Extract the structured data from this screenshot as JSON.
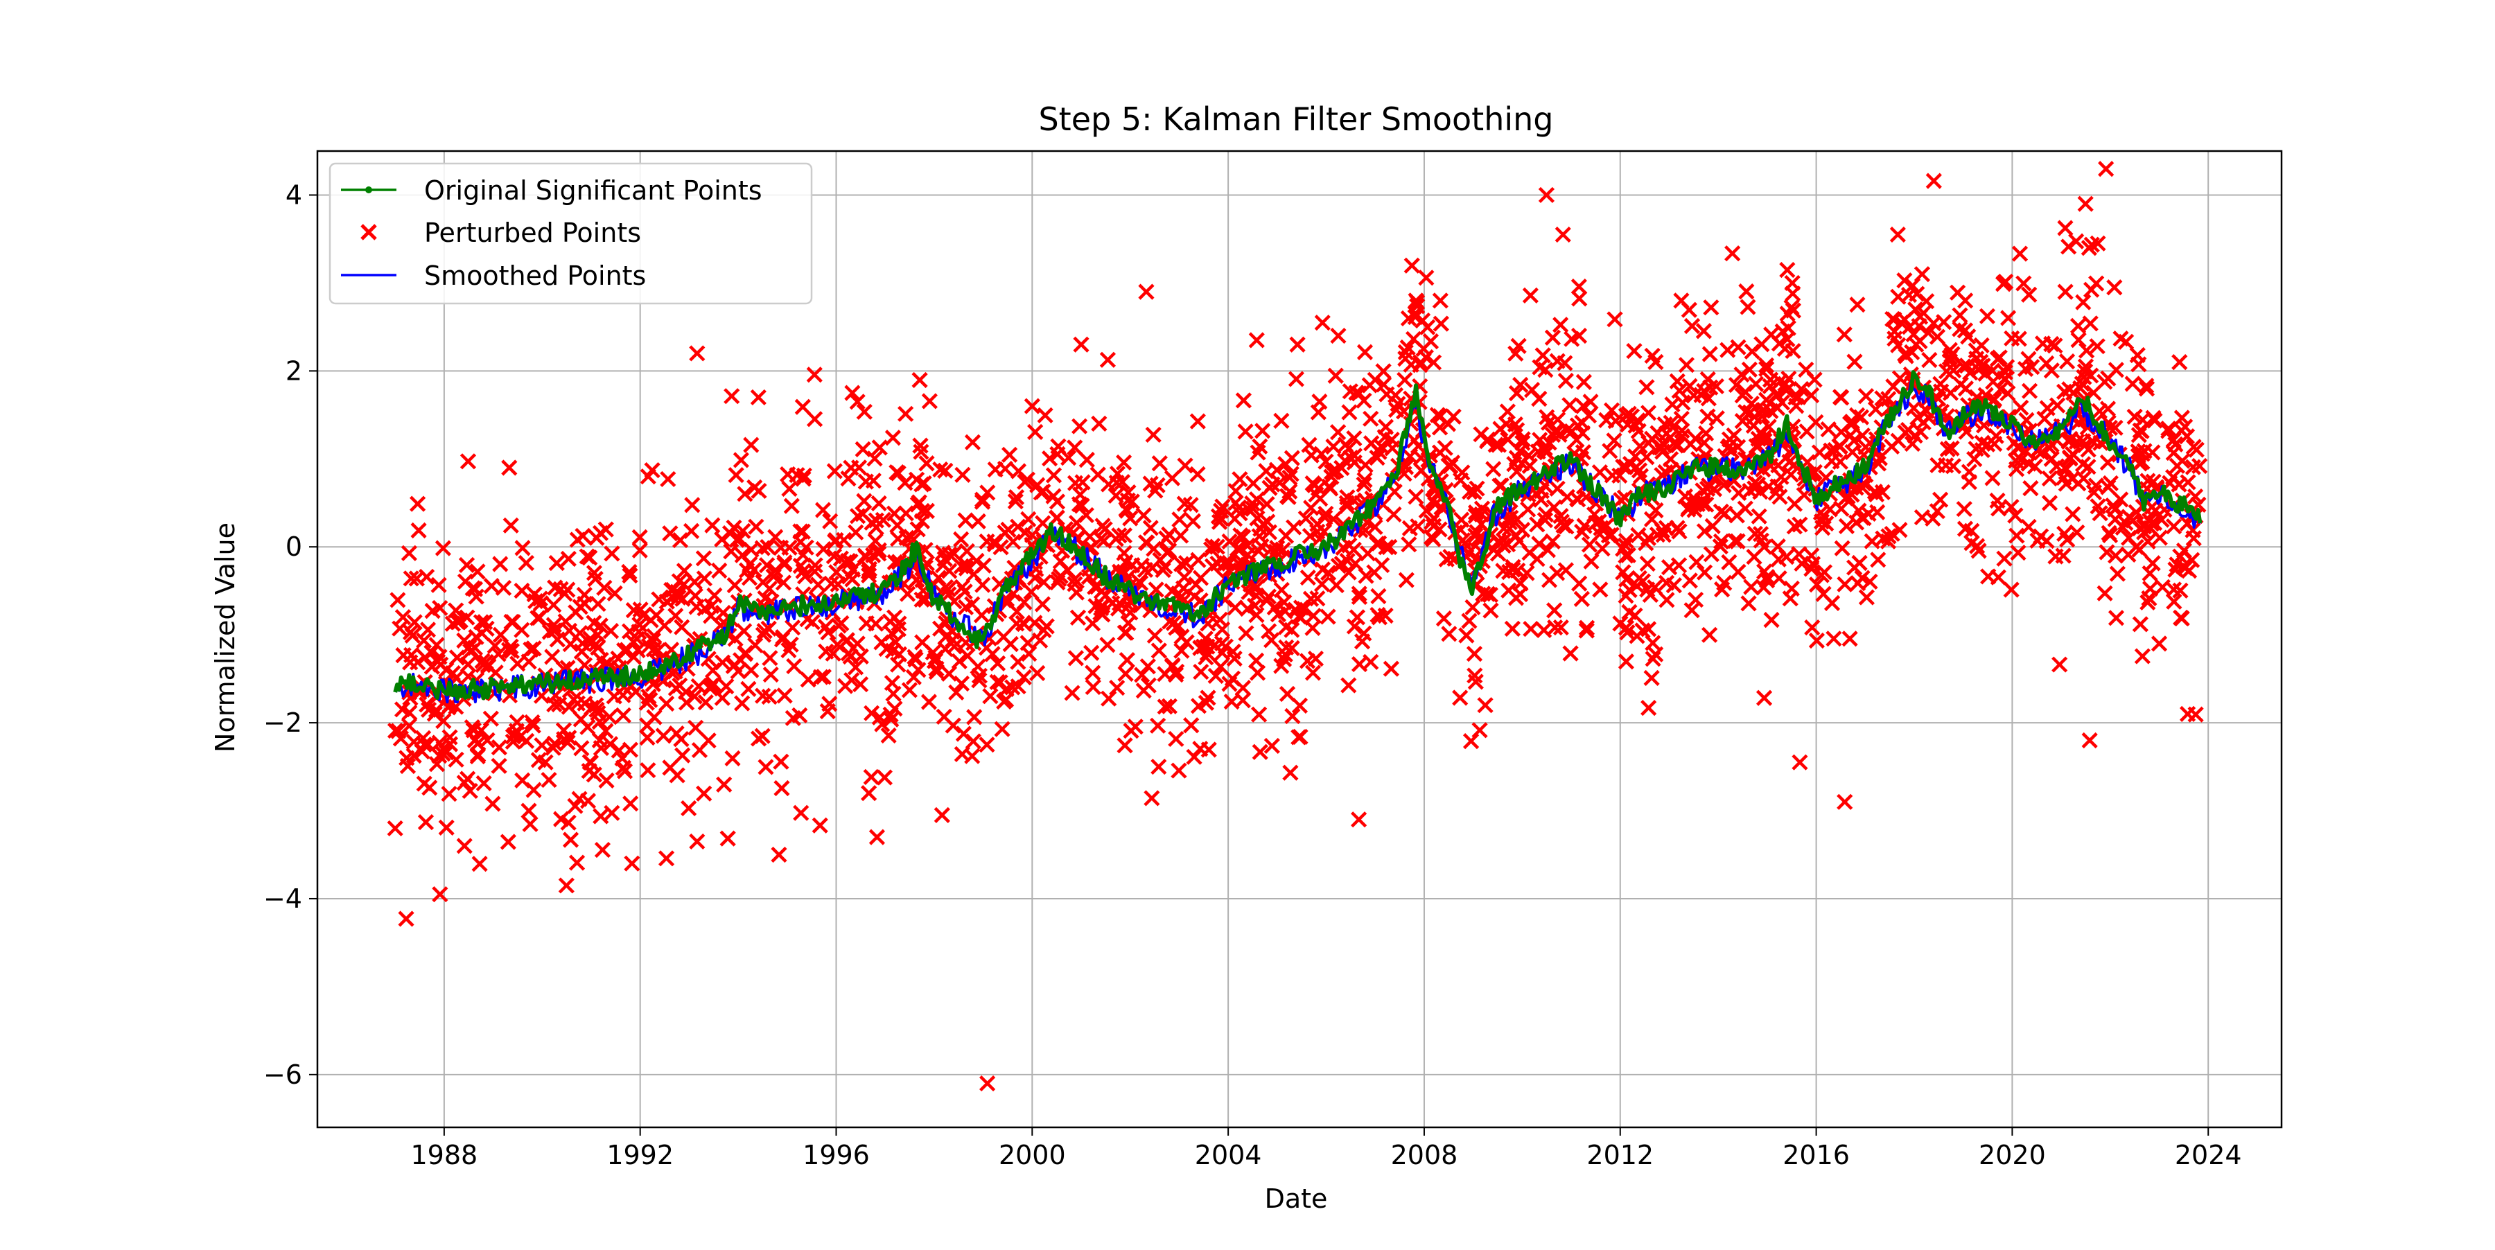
{
  "chart_data": {
    "type": "line",
    "title": "Step 5: Kalman Filter Smoothing",
    "xlabel": "Date",
    "ylabel": "Normalized Value",
    "xlim": [
      "1985-06-01",
      "2025-07-01"
    ],
    "ylim": [
      -6.6,
      4.5
    ],
    "x_ticks": [
      "1988",
      "1992",
      "1996",
      "2000",
      "2004",
      "2008",
      "2012",
      "2016",
      "2020",
      "2024"
    ],
    "y_ticks": [
      4,
      2,
      0,
      -2,
      -4,
      -6
    ],
    "y_tick_labels": [
      "4",
      "2",
      "0",
      "−2",
      "−4",
      "−6"
    ],
    "grid": true,
    "legend_position": "top-left",
    "legend": [
      {
        "name": "Original Significant Points",
        "marker": "line-dot"
      },
      {
        "name": "Perturbed Points",
        "marker": "x"
      },
      {
        "name": "Smoothed Points",
        "marker": "line"
      }
    ],
    "colors": {
      "original": "#008000",
      "perturbed": "#ff0000",
      "smoothed": "#0000ff",
      "grid": "#b0b0b0"
    },
    "trend": {
      "x": [
        "1987-01-01",
        "1987-06-01",
        "1988-01-01",
        "1989-01-01",
        "1990-01-01",
        "1991-01-01",
        "1992-01-01",
        "1993-01-01",
        "1993-10-01",
        "1994-01-01",
        "1994-06-01",
        "1995-01-01",
        "1996-01-01",
        "1997-01-01",
        "1997-09-01",
        "1998-01-01",
        "1998-06-01",
        "1999-01-01",
        "1999-06-01",
        "2000-01-01",
        "2000-06-01",
        "2001-01-01",
        "2001-06-01",
        "2002-01-01",
        "2002-06-01",
        "2003-01-01",
        "2003-06-01",
        "2004-01-01",
        "2004-06-01",
        "2005-01-01",
        "2005-06-01",
        "2006-01-01",
        "2006-06-01",
        "2007-01-01",
        "2007-06-01",
        "2007-11-01",
        "2008-03-01",
        "2008-06-01",
        "2008-10-01",
        "2009-01-01",
        "2009-06-01",
        "2010-01-01",
        "2010-06-01",
        "2011-01-01",
        "2011-06-01",
        "2012-01-01",
        "2012-06-01",
        "2013-01-01",
        "2013-06-01",
        "2014-01-01",
        "2014-06-01",
        "2015-01-01",
        "2015-06-01",
        "2016-01-01",
        "2016-06-01",
        "2017-01-01",
        "2017-06-01",
        "2018-01-01",
        "2018-04-01",
        "2018-09-01",
        "2019-01-01",
        "2019-06-01",
        "2020-01-01",
        "2020-06-01",
        "2021-01-01",
        "2021-06-01",
        "2022-01-01",
        "2022-06-01",
        "2022-09-01",
        "2023-01-01",
        "2023-06-01",
        "2023-11-01"
      ],
      "original": [
        -1.6,
        -1.55,
        -1.65,
        -1.6,
        -1.55,
        -1.5,
        -1.45,
        -1.2,
        -1.0,
        -0.6,
        -0.75,
        -0.7,
        -0.6,
        -0.5,
        0.0,
        -0.6,
        -0.8,
        -1.1,
        -0.5,
        -0.1,
        0.2,
        -0.1,
        -0.3,
        -0.5,
        -0.6,
        -0.7,
        -0.8,
        -0.4,
        -0.3,
        -0.2,
        -0.1,
        0.0,
        0.2,
        0.5,
        0.8,
        1.8,
        0.8,
        0.6,
        -0.2,
        -0.5,
        0.4,
        0.7,
        0.8,
        1.0,
        0.7,
        0.3,
        0.6,
        0.7,
        0.9,
        0.9,
        0.9,
        1.0,
        1.4,
        0.5,
        0.7,
        0.9,
        1.4,
        1.9,
        1.8,
        1.3,
        1.5,
        1.6,
        1.4,
        1.2,
        1.3,
        1.7,
        1.2,
        0.9,
        0.5,
        0.6,
        0.5,
        0.3
      ],
      "smoothed": [
        -1.62,
        -1.58,
        -1.63,
        -1.62,
        -1.57,
        -1.52,
        -1.47,
        -1.25,
        -1.05,
        -0.7,
        -0.78,
        -0.72,
        -0.63,
        -0.52,
        -0.1,
        -0.55,
        -0.82,
        -1.05,
        -0.55,
        -0.15,
        0.15,
        -0.08,
        -0.3,
        -0.52,
        -0.62,
        -0.72,
        -0.8,
        -0.45,
        -0.32,
        -0.22,
        -0.12,
        -0.02,
        0.18,
        0.45,
        0.78,
        1.6,
        0.85,
        0.55,
        -0.1,
        -0.45,
        0.35,
        0.68,
        0.78,
        0.95,
        0.7,
        0.35,
        0.58,
        0.7,
        0.88,
        0.9,
        0.9,
        0.98,
        1.3,
        0.55,
        0.68,
        0.88,
        1.35,
        1.8,
        1.75,
        1.3,
        1.48,
        1.55,
        1.38,
        1.22,
        1.3,
        1.6,
        1.2,
        0.88,
        0.52,
        0.58,
        0.48,
        0.3
      ],
      "perturbed_spread": 0.85,
      "scatter_samples": 2400
    },
    "perturbed_outliers": [
      {
        "x": "1987-01-01",
        "y": -3.2
      },
      {
        "x": "1987-12-01",
        "y": -3.95
      },
      {
        "x": "1988-06-01",
        "y": -3.4
      },
      {
        "x": "1990-07-01",
        "y": -3.85
      },
      {
        "x": "1991-11-01",
        "y": -3.6
      },
      {
        "x": "1992-03-01",
        "y": 0.8
      },
      {
        "x": "1989-05-01",
        "y": 0.9
      },
      {
        "x": "1993-03-01",
        "y": 2.2
      },
      {
        "x": "1993-03-01",
        "y": -3.35
      },
      {
        "x": "1994-06-01",
        "y": 1.7
      },
      {
        "x": "1994-11-01",
        "y": -3.5
      },
      {
        "x": "1996-05-01",
        "y": 1.75
      },
      {
        "x": "1996-09-01",
        "y": -2.8
      },
      {
        "x": "1996-11-01",
        "y": -3.3
      },
      {
        "x": "1998-03-01",
        "y": -3.05
      },
      {
        "x": "1999-02-01",
        "y": -6.1
      },
      {
        "x": "2000-01-01",
        "y": 1.6
      },
      {
        "x": "2001-01-01",
        "y": 2.3
      },
      {
        "x": "2002-05-01",
        "y": 2.9
      },
      {
        "x": "2002-08-01",
        "y": -2.5
      },
      {
        "x": "2004-08-01",
        "y": 2.35
      },
      {
        "x": "2005-06-01",
        "y": 2.3
      },
      {
        "x": "2006-04-01",
        "y": 2.4
      },
      {
        "x": "2006-09-01",
        "y": -3.1
      },
      {
        "x": "2007-11-01",
        "y": 2.8
      },
      {
        "x": "2008-05-01",
        "y": 2.8
      },
      {
        "x": "2009-04-01",
        "y": -1.8
      },
      {
        "x": "2010-07-01",
        "y": 4.0
      },
      {
        "x": "2010-11-01",
        "y": 3.55
      },
      {
        "x": "2011-03-01",
        "y": 2.4
      },
      {
        "x": "2013-04-01",
        "y": 2.8
      },
      {
        "x": "2015-06-01",
        "y": 2.65
      },
      {
        "x": "2015-09-01",
        "y": -2.45
      },
      {
        "x": "2016-08-01",
        "y": -2.9
      },
      {
        "x": "2017-09-01",
        "y": 3.55
      },
      {
        "x": "2018-03-01",
        "y": 3.1
      },
      {
        "x": "2019-11-01",
        "y": 3.0
      },
      {
        "x": "2021-02-01",
        "y": 2.9
      },
      {
        "x": "2021-07-01",
        "y": 3.9
      },
      {
        "x": "2021-10-01",
        "y": 3.45
      },
      {
        "x": "2021-08-01",
        "y": -2.2
      },
      {
        "x": "2022-02-01",
        "y": 2.95
      },
      {
        "x": "2023-01-01",
        "y": -1.1
      },
      {
        "x": "2023-06-01",
        "y": 2.1
      },
      {
        "x": "2023-08-01",
        "y": -1.9
      }
    ]
  }
}
